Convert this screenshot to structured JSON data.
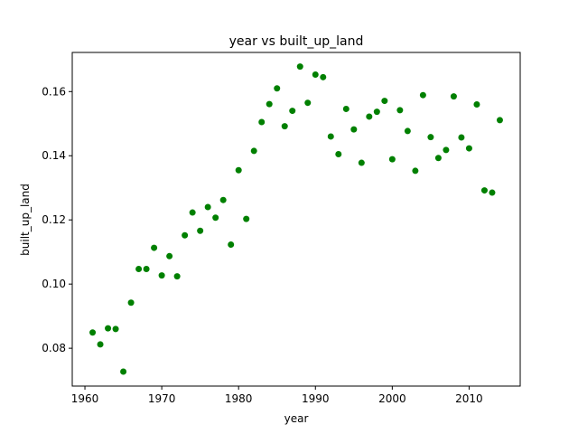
{
  "chart_data": {
    "type": "scatter",
    "title": "year vs built_up_land",
    "xlabel": "year",
    "ylabel": "built_up_land",
    "xlim": [
      1958.35,
      2016.65
    ],
    "ylim": [
      0.0682,
      0.1722
    ],
    "xticks": [
      1960,
      1970,
      1980,
      1990,
      2000,
      2010
    ],
    "yticks": [
      0.08,
      0.1,
      0.12,
      0.14,
      0.16
    ],
    "ytick_labels": [
      "0.08",
      "0.10",
      "0.12",
      "0.14",
      "0.16"
    ],
    "marker_color": "#008000",
    "grid": false,
    "points": [
      [
        1961,
        0.0849
      ],
      [
        1962,
        0.0812
      ],
      [
        1963,
        0.0862
      ],
      [
        1964,
        0.086
      ],
      [
        1965,
        0.0727
      ],
      [
        1966,
        0.0942
      ],
      [
        1967,
        0.1047
      ],
      [
        1968,
        0.1047
      ],
      [
        1969,
        0.1113
      ],
      [
        1970,
        0.1027
      ],
      [
        1971,
        0.1087
      ],
      [
        1972,
        0.1024
      ],
      [
        1973,
        0.1152
      ],
      [
        1974,
        0.1223
      ],
      [
        1975,
        0.1166
      ],
      [
        1976,
        0.124
      ],
      [
        1977,
        0.1207
      ],
      [
        1978,
        0.1262
      ],
      [
        1979,
        0.1123
      ],
      [
        1980,
        0.1355
      ],
      [
        1981,
        0.1203
      ],
      [
        1982,
        0.1415
      ],
      [
        1983,
        0.1505
      ],
      [
        1984,
        0.1561
      ],
      [
        1985,
        0.161
      ],
      [
        1986,
        0.1492
      ],
      [
        1987,
        0.154
      ],
      [
        1988,
        0.1678
      ],
      [
        1989,
        0.1565
      ],
      [
        1990,
        0.1653
      ],
      [
        1991,
        0.1645
      ],
      [
        1992,
        0.146
      ],
      [
        1993,
        0.1405
      ],
      [
        1994,
        0.1546
      ],
      [
        1995,
        0.1482
      ],
      [
        1996,
        0.1378
      ],
      [
        1997,
        0.1522
      ],
      [
        1998,
        0.1537
      ],
      [
        1999,
        0.1571
      ],
      [
        2000,
        0.1389
      ],
      [
        2001,
        0.1542
      ],
      [
        2002,
        0.1477
      ],
      [
        2003,
        0.1353
      ],
      [
        2004,
        0.1589
      ],
      [
        2005,
        0.1458
      ],
      [
        2006,
        0.1393
      ],
      [
        2007,
        0.1418
      ],
      [
        2008,
        0.1585
      ],
      [
        2009,
        0.1457
      ],
      [
        2010,
        0.1423
      ],
      [
        2011,
        0.156
      ],
      [
        2012,
        0.1292
      ],
      [
        2013,
        0.1285
      ],
      [
        2014,
        0.1511
      ]
    ]
  }
}
